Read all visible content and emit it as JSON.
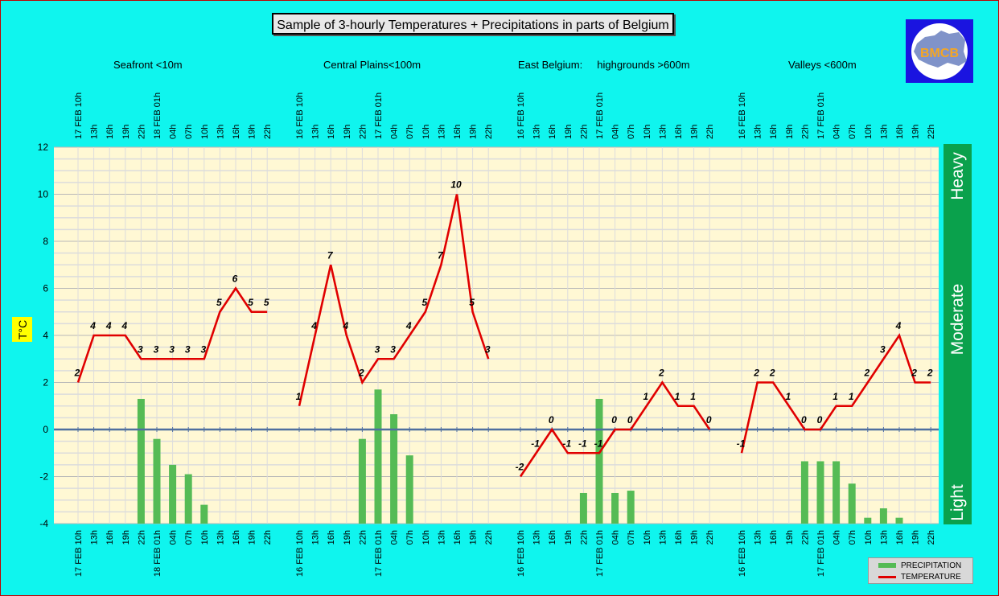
{
  "title": "Sample of 3-hourly Temperatures + Precipitations in parts of Belgium",
  "regions": [
    "Seafront <10m",
    "Central Plains<100m",
    "East Belgium:     highgrounds >600m",
    "Valleys <600m"
  ],
  "logo_text": "BMCB",
  "y_axis_label": "T°C",
  "intensity_labels": [
    "Heavy",
    "Moderate",
    "Light"
  ],
  "legend": {
    "precipitation": "PRECIPITATION",
    "temperature": "TEMPERATURE"
  },
  "colors": {
    "temperature": "#e00000",
    "precipitation": "#55bb55",
    "plot_bg": "#fff8d4",
    "zero_line": "#4f6f9f"
  },
  "chart_data": {
    "type": "line",
    "ylim": [
      -4,
      12
    ],
    "yticks": [
      12,
      10,
      8,
      6,
      4,
      2,
      0,
      -2,
      -4
    ],
    "grid": true,
    "legend_position": "bottom-right",
    "panels": [
      {
        "region": "Seafront <10m",
        "x": [
          "17 FEB 10h",
          "13h",
          "16h",
          "19h",
          "22h",
          "18 FEB 01h",
          "04h",
          "07h",
          "10h",
          "13h",
          "16h",
          "19h",
          "22h"
        ],
        "temperature": [
          2,
          4,
          4,
          4,
          3,
          3,
          3,
          3,
          3,
          5,
          6,
          5,
          5
        ],
        "precipitation": [
          null,
          null,
          null,
          null,
          1.3,
          -0.4,
          -1.5,
          -1.9,
          -3.2,
          null,
          null,
          null,
          null
        ]
      },
      {
        "region": "Central Plains<100m",
        "x": [
          "16 FEB 10h",
          "13h",
          "16h",
          "19h",
          "22h",
          "17 FEB 01h",
          "04h",
          "07h",
          "10h",
          "13h",
          "16h",
          "19h",
          "22h"
        ],
        "temperature": [
          1,
          4,
          7,
          4,
          2,
          3,
          3,
          4,
          5,
          7,
          10,
          5,
          3
        ],
        "precipitation": [
          null,
          null,
          null,
          null,
          -0.4,
          1.7,
          0.65,
          -1.1,
          null,
          null,
          null,
          null,
          null
        ]
      },
      {
        "region": "East Belgium: highgrounds >600m",
        "x": [
          "16 FEB 10h",
          "13h",
          "16h",
          "19h",
          "22h",
          "17 FEB 01h",
          "04h",
          "07h",
          "10h",
          "13h",
          "16h",
          "19h",
          "22h"
        ],
        "temperature": [
          -2,
          -1,
          0,
          -1,
          -1,
          -1,
          0,
          0,
          1,
          2,
          1,
          1,
          0
        ],
        "precipitation": [
          null,
          null,
          null,
          null,
          -2.7,
          1.3,
          -2.7,
          -2.6,
          null,
          null,
          null,
          null,
          null
        ]
      },
      {
        "region": "Valleys <600m",
        "x": [
          "16 FEB 10h",
          "13h",
          "16h",
          "19h",
          "22h",
          "17 FEB 01h",
          "04h",
          "07h",
          "10h",
          "13h",
          "16h",
          "19h",
          "22h"
        ],
        "temperature": [
          -1,
          2,
          2,
          1,
          0,
          0,
          1,
          1,
          2,
          3,
          4,
          2,
          2
        ],
        "precipitation": [
          null,
          null,
          null,
          null,
          -1.35,
          -1.35,
          -1.35,
          -2.3,
          -3.75,
          -3.35,
          -3.75,
          null,
          null
        ]
      }
    ]
  }
}
